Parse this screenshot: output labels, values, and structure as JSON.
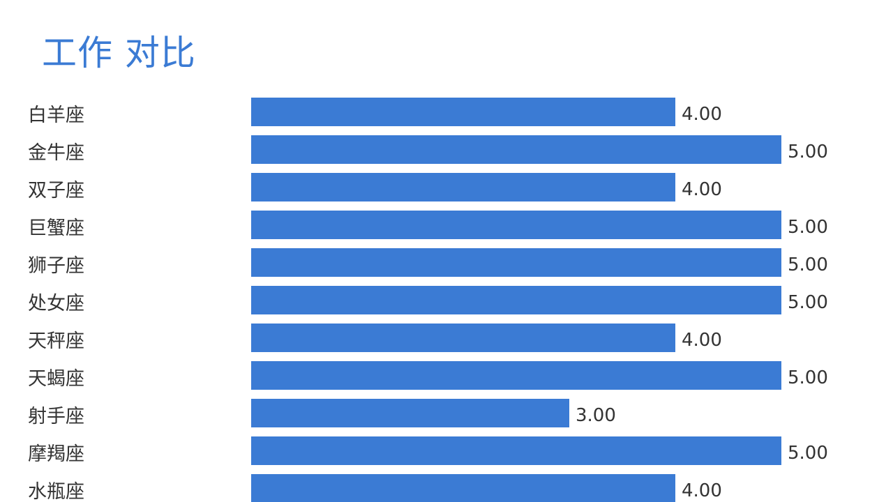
{
  "title": "工作 对比",
  "colors": {
    "bar": "#3b7bd4",
    "title": "#3b7bd4",
    "text": "#333333"
  },
  "chart_data": {
    "type": "bar",
    "orientation": "horizontal",
    "title": "工作 对比",
    "categories": [
      "白羊座",
      "金牛座",
      "双子座",
      "巨蟹座",
      "狮子座",
      "处女座",
      "天秤座",
      "天蝎座",
      "射手座",
      "摩羯座",
      "水瓶座"
    ],
    "values": [
      4,
      5,
      4,
      5,
      5,
      5,
      4,
      5,
      3,
      5,
      4
    ],
    "value_labels": [
      "4.00",
      "5.00",
      "4.00",
      "5.00",
      "5.00",
      "5.00",
      "4.00",
      "5.00",
      "3.00",
      "5.00",
      "4.00"
    ],
    "xlim": [
      0,
      5
    ],
    "grid": false,
    "legend": "none"
  }
}
